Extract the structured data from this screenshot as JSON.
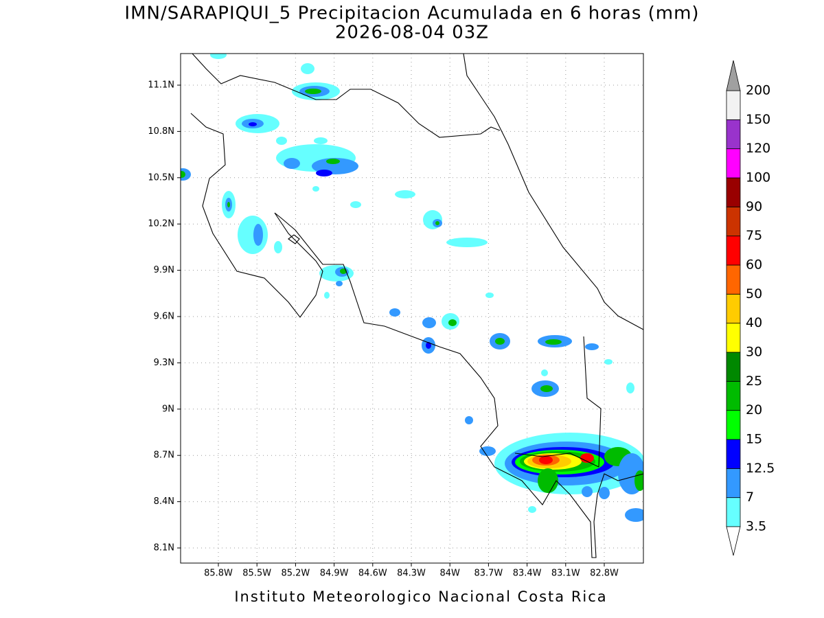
{
  "title": "IMN/SARAPIQUI_5 Precipitacion Acumulada en 6 horas (mm)",
  "subtitle": "2026-08-04 03Z",
  "lat_ticks": [
    "11.1N",
    "10.8N",
    "10.5N",
    "10.2N",
    "9.9N",
    "9.6N",
    "9.3N",
    "9N",
    "8.7N",
    "8.4N",
    "8.1N"
  ],
  "lon_ticks": [
    "85.8W",
    "85.5W",
    "85.2W",
    "84.9W",
    "84.6W",
    "84.3W",
    "84W",
    "83.7W",
    "83.4W",
    "83.1W",
    "82.8W"
  ],
  "colorbar": {
    "levels": [
      "3.5",
      "7",
      "12.5",
      "15",
      "20",
      "25",
      "30",
      "40",
      "50",
      "60",
      "75",
      "90",
      "100",
      "120",
      "150",
      "200"
    ],
    "colors": [
      "#66ffff",
      "#3399ff",
      "#0000ff",
      "#00ff00",
      "#00bb00",
      "#008800",
      "#ffff00",
      "#ffcc00",
      "#ff6600",
      "#ff0000",
      "#cc3300",
      "#990000",
      "#ff00ff",
      "#9933cc",
      "#f2f2f2"
    ],
    "over_color": "#a0a0a0",
    "under_color": "#ffffff"
  },
  "footer": "Instituto Meteorologico Nacional Costa Rica"
}
